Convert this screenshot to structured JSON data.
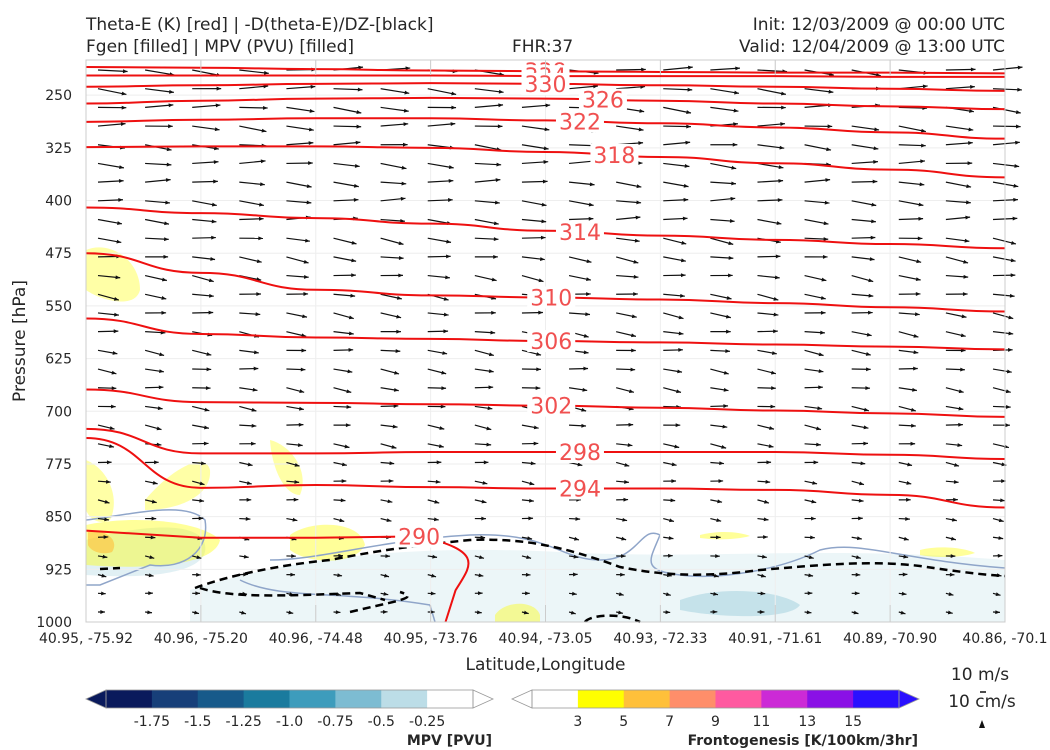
{
  "header": {
    "left_line1": "Theta-E (K) [red] | -D(theta-E)/DZ-[black]",
    "left_line2": "Fgen [filled] | MPV (PVU) [filled]",
    "center": "FHR:37",
    "right_line1": "Init: 12/03/2009 @ 00:00 UTC",
    "right_line2": "Valid: 12/04/2009 @ 13:00 UTC"
  },
  "chart_data": {
    "type": "cross-section",
    "xlabel": "Latitude,Longitude",
    "ylabel": "Pressure [hPa]",
    "x_ticks": [
      "40.95, -75.92",
      "40.96, -75.20",
      "40.96, -74.48",
      "40.95, -73.76",
      "40.94, -73.05",
      "40.93, -72.33",
      "40.91, -71.61",
      "40.89, -70.90",
      "40.86, -70.1"
    ],
    "y_ticks": [
      250,
      325,
      400,
      475,
      550,
      625,
      700,
      775,
      850,
      925,
      1000
    ],
    "ylim": [
      1000,
      200
    ],
    "y_scale": "linear, inverted",
    "theta_e_contours": [
      {
        "label": "338",
        "levels_hpa": [
          210,
          211,
          213,
          215,
          216,
          217,
          218,
          218,
          219
        ]
      },
      {
        "label": "334",
        "levels_hpa": [
          222,
          222,
          222,
          222,
          223,
          223,
          223,
          224,
          224
        ]
      },
      {
        "label": "330",
        "levels_hpa": [
          238,
          236,
          234,
          233,
          234,
          236,
          238,
          241,
          244
        ]
      },
      {
        "label": "326",
        "levels_hpa": [
          262,
          258,
          255,
          254,
          255,
          258,
          262,
          266,
          270
        ]
      },
      {
        "label": "322",
        "levels_hpa": [
          288,
          285,
          283,
          283,
          286,
          290,
          296,
          303,
          312
        ]
      },
      {
        "label": "318",
        "levels_hpa": [
          324,
          323,
          323,
          325,
          331,
          338,
          347,
          356,
          367
        ]
      },
      {
        "label": "314",
        "levels_hpa": [
          410,
          418,
          425,
          433,
          443,
          450,
          456,
          462,
          468
        ]
      },
      {
        "label": "310",
        "levels_hpa": [
          475,
          503,
          527,
          535,
          538,
          541,
          546,
          552,
          558
        ]
      },
      {
        "label": "306",
        "levels_hpa": [
          568,
          590,
          595,
          597,
          600,
          602,
          605,
          608,
          612
        ]
      },
      {
        "label": "302",
        "levels_hpa": [
          669,
          687,
          688,
          690,
          692,
          695,
          699,
          703,
          708
        ]
      },
      {
        "label": "298",
        "levels_hpa": [
          725,
          760,
          760,
          758,
          758,
          758,
          758,
          762,
          768
        ]
      },
      {
        "label": "294",
        "levels_hpa": [
          738,
          809,
          805,
          808,
          810,
          810,
          812,
          819,
          837
        ]
      },
      {
        "label": "290",
        "levels_hpa": [
          870,
          880,
          880,
          878,
          885,
          900,
          925,
          945,
          960
        ]
      }
    ],
    "mpv_colorbar": {
      "label": "MPV [PVU]",
      "ticks": [
        "-1.75",
        "-1.5",
        "-1.25",
        "-1.0",
        "-0.75",
        "-0.5",
        "-0.25"
      ],
      "colors": [
        "#0a1a5c",
        "#173f79",
        "#175a8a",
        "#1a7b9e",
        "#3d9cbc",
        "#7dbcd2",
        "#bcdde7",
        "#ffffff"
      ]
    },
    "fgen_colorbar": {
      "label": "Frontogenesis [K/100km/3hr]",
      "ticks": [
        "3",
        "5",
        "7",
        "9",
        "11",
        "13",
        "15"
      ],
      "colors": [
        "#ffffff",
        "#ffff00",
        "#ffc03a",
        "#ff8e6a",
        "#ff5aa0",
        "#cc2ad6",
        "#8a10e6",
        "#2a10ff"
      ]
    },
    "reference_vectors": [
      "10 m/s",
      "10 cm/s"
    ]
  }
}
